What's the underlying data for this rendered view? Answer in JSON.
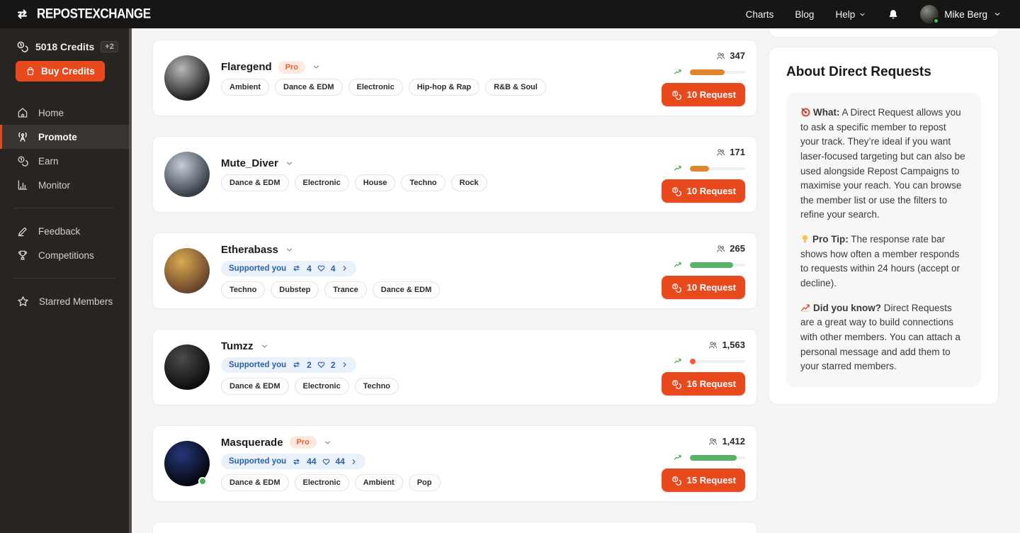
{
  "colors": {
    "brand_orange": "#E8491D",
    "pro_badge_bg": "#FCE9E2",
    "pro_badge_text": "#EF5C35",
    "supported_bg": "#EAF1FB",
    "supported_text": "#2A62A9",
    "bar_orange": "#E0862F",
    "bar_green": "#57B368",
    "bar_red": "#F05B3B",
    "trend_green": "#3FA34D"
  },
  "navbar": {
    "logo_text": "REPOSTEXCHANGE",
    "links": [
      {
        "label": "Charts",
        "chevron": false
      },
      {
        "label": "Blog",
        "chevron": false
      },
      {
        "label": "Help",
        "chevron": true
      }
    ],
    "user_name": "Mike Berg"
  },
  "sidebar": {
    "credits_label": "5018 Credits",
    "credits_badge": "+2",
    "buy_credits_label": "Buy Credits",
    "menu_groups": [
      [
        {
          "label": "Home",
          "icon": "home-icon",
          "active": false
        },
        {
          "label": "Promote",
          "icon": "broadcast-icon",
          "active": true
        },
        {
          "label": "Earn",
          "icon": "coins-icon",
          "active": false
        },
        {
          "label": "Monitor",
          "icon": "bar-chart-icon",
          "active": false
        }
      ],
      [
        {
          "label": "Feedback",
          "icon": "pencil-icon",
          "active": false
        },
        {
          "label": "Competitions",
          "icon": "trophy-icon",
          "active": false
        }
      ],
      [
        {
          "label": "Starred Members",
          "icon": "star-icon",
          "active": false
        }
      ]
    ]
  },
  "pro_label": "Pro",
  "supported_label": "Supported you",
  "members": [
    {
      "name": "Flaregend",
      "pro": true,
      "online": false,
      "supported": null,
      "tags": [
        "Ambient",
        "Dance & EDM",
        "Electronic",
        "Hip-hop & Rap",
        "R&B & Soul"
      ],
      "followers": "347",
      "response_rate_pct": 63,
      "response_color": "orange",
      "request_label": "10 Request",
      "avatar_colors": [
        "#b9b9b7",
        "#23211f"
      ]
    },
    {
      "name": "Mute_Diver",
      "pro": false,
      "online": false,
      "supported": null,
      "tags": [
        "Dance & EDM",
        "Electronic",
        "House",
        "Techno",
        "Rock"
      ],
      "followers": "171",
      "response_rate_pct": 35,
      "response_color": "orange",
      "request_label": "10 Request",
      "avatar_colors": [
        "#c4cdd8",
        "#363e49"
      ]
    },
    {
      "name": "Etherabass",
      "pro": false,
      "online": false,
      "supported": {
        "reposts": "4",
        "likes": "4"
      },
      "tags": [
        "Techno",
        "Dubstep",
        "Trance",
        "Dance & EDM"
      ],
      "followers": "265",
      "response_rate_pct": 78,
      "response_color": "green",
      "request_label": "10 Request",
      "avatar_colors": [
        "#d9aa4f",
        "#6a452e"
      ]
    },
    {
      "name": "Tumzz",
      "pro": false,
      "online": false,
      "supported": {
        "reposts": "2",
        "likes": "2"
      },
      "tags": [
        "Dance & EDM",
        "Electronic",
        "Techno"
      ],
      "followers": "1,563",
      "response_rate_pct": 7,
      "response_color": "red",
      "request_label": "16 Request",
      "avatar_colors": [
        "#4b4b4b",
        "#0e0e0e"
      ]
    },
    {
      "name": "Masquerade",
      "pro": true,
      "online": true,
      "supported": {
        "reposts": "44",
        "likes": "44"
      },
      "tags": [
        "Dance & EDM",
        "Electronic",
        "Ambient",
        "Pop"
      ],
      "followers": "1,412",
      "response_rate_pct": 85,
      "response_color": "green",
      "request_label": "15 Request",
      "avatar_colors": [
        "#24377a",
        "#05080f"
      ]
    }
  ],
  "about_panel": {
    "title": "About Direct Requests",
    "paragraphs": [
      {
        "icon": "dart-icon",
        "bold": "What:",
        "text": "A Direct Request allows you to ask a specific member to repost your track. They’re ideal if you want laser-focused targeting but can also be used alongside Repost Campaigns to maximise your reach. You can browse the member list or use the filters to refine your search."
      },
      {
        "icon": "bulb-icon",
        "bold": "Pro Tip:",
        "text": "The response rate bar shows how often a member responds to requests within 24 hours (accept or decline)."
      },
      {
        "icon": "chart-up-icon",
        "bold": "Did you know?",
        "text": "Direct Requests are a great way to build connections with other members. You can attach a personal message and add them to your starred members."
      }
    ]
  }
}
